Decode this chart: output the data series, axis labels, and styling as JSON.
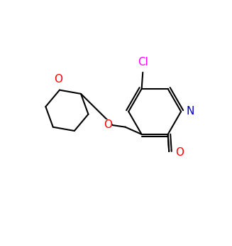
{
  "background_color": "#ffffff",
  "bond_color": "#000000",
  "bond_width": 1.5,
  "atom_colors": {
    "N": "#0000cd",
    "O": "#ff0000",
    "Cl": "#ff00ff",
    "C": "#000000"
  },
  "font_size": 10,
  "title": ""
}
